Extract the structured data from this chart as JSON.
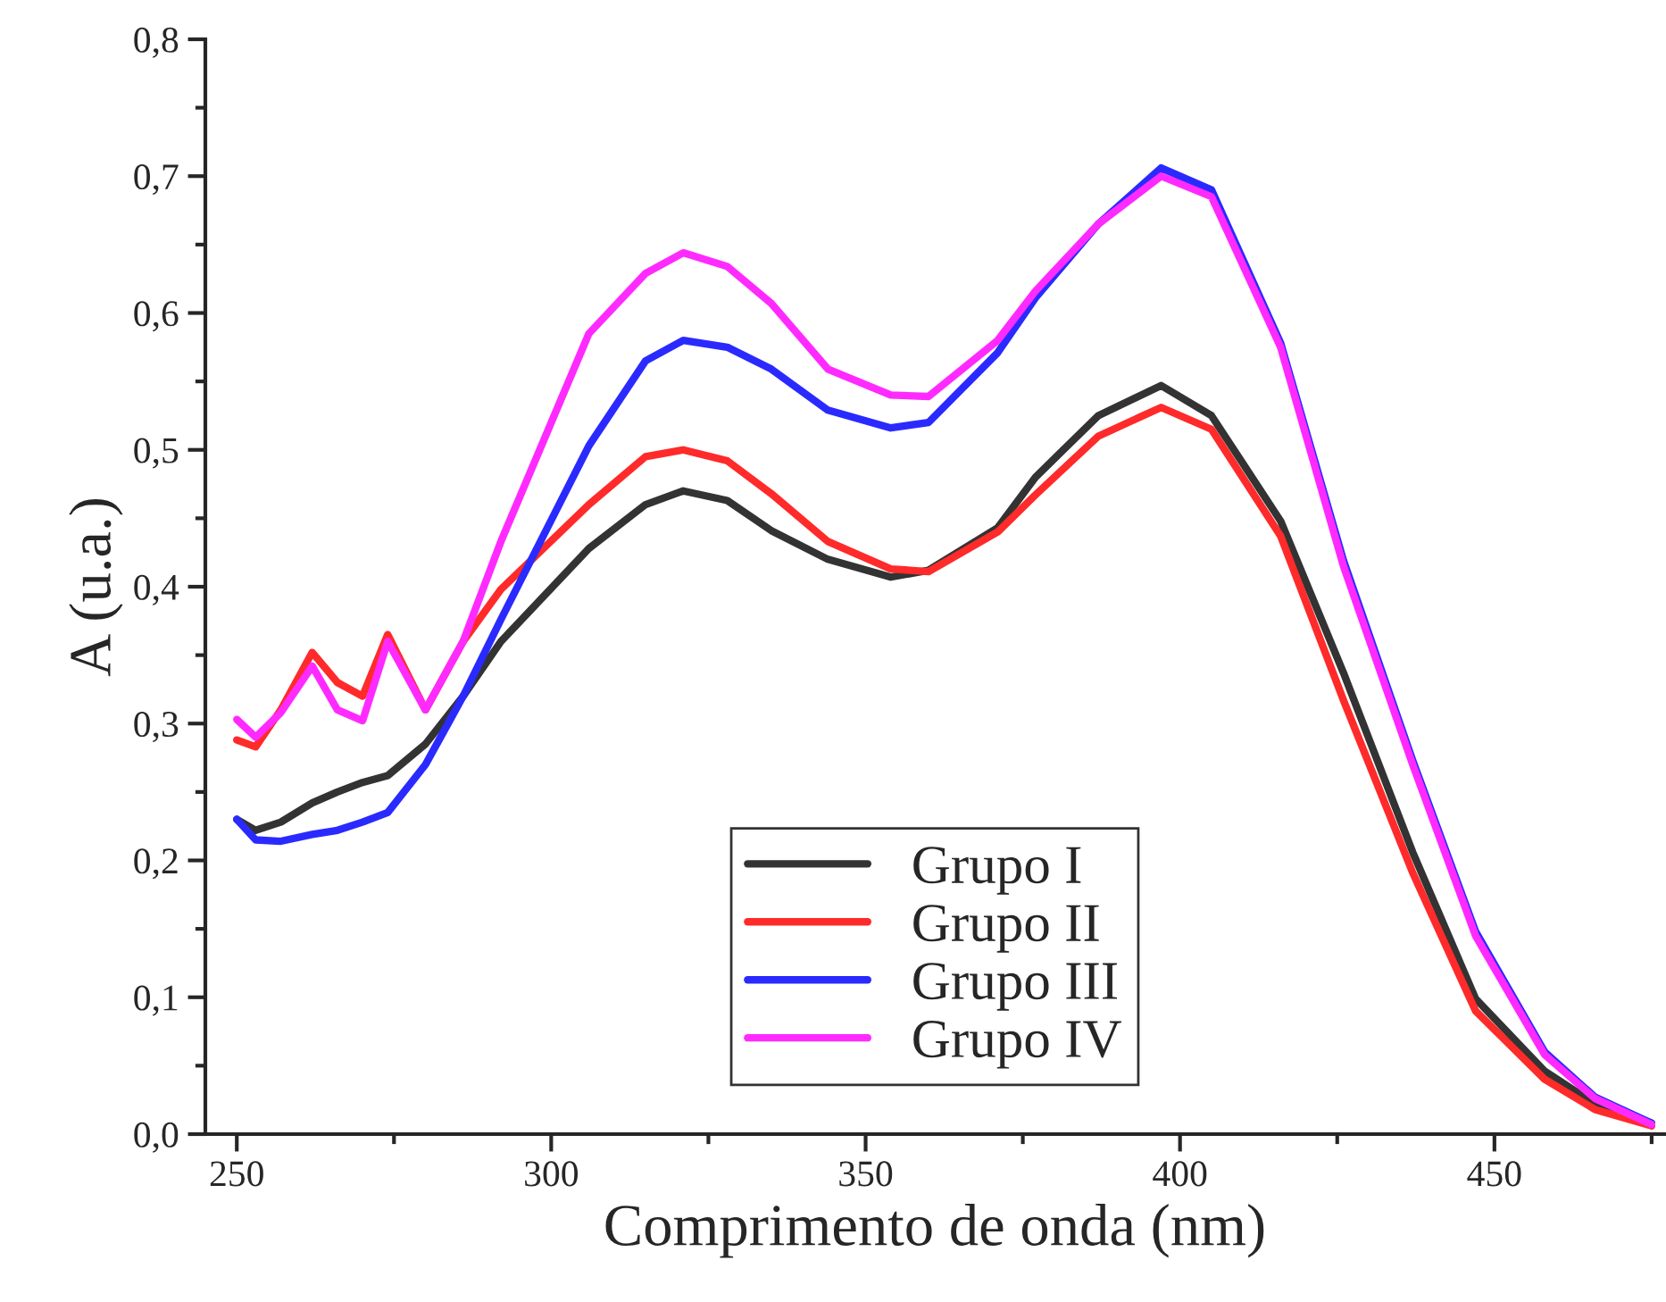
{
  "chart_data": {
    "type": "line",
    "xlabel": "Comprimento de onda (nm)",
    "ylabel": "A (u.a.)",
    "xlim": [
      245,
      477
    ],
    "ylim": [
      0,
      0.8
    ],
    "xticks": [
      250,
      300,
      350,
      400,
      450
    ],
    "yticks": [
      {
        "value": 0,
        "label": "0,0"
      },
      {
        "value": 0.1,
        "label": "0,1"
      },
      {
        "value": 0.2,
        "label": "0,2"
      },
      {
        "value": 0.3,
        "label": "0,3"
      },
      {
        "value": 0.4,
        "label": "0,4"
      },
      {
        "value": 0.5,
        "label": "0,5"
      },
      {
        "value": 0.6,
        "label": "0,6"
      },
      {
        "value": 0.7,
        "label": "0,7"
      },
      {
        "value": 0.8,
        "label": "0,8"
      }
    ],
    "legend": "bottom",
    "grid": false,
    "marker": "none",
    "line_style": "solid",
    "x": [
      250,
      253,
      257,
      262,
      266,
      270,
      274,
      280,
      286,
      292,
      306,
      315,
      321,
      328,
      335,
      344,
      354,
      360,
      371,
      377,
      387,
      397,
      405,
      416,
      426,
      437,
      447,
      458,
      466,
      475
    ],
    "series": [
      {
        "name": "Grupo I",
        "color": "#333333",
        "values": [
          0.23,
          0.222,
          0.228,
          0.242,
          0.25,
          0.257,
          0.262,
          0.285,
          0.32,
          0.36,
          0.428,
          0.46,
          0.47,
          0.463,
          0.441,
          0.42,
          0.407,
          0.412,
          0.443,
          0.48,
          0.525,
          0.547,
          0.525,
          0.448,
          0.337,
          0.206,
          0.099,
          0.046,
          0.022,
          0.008
        ]
      },
      {
        "name": "Grupo II",
        "color": "#ff2a2a",
        "values": [
          0.288,
          0.283,
          0.31,
          0.352,
          0.33,
          0.32,
          0.365,
          0.31,
          0.36,
          0.398,
          0.46,
          0.495,
          0.5,
          0.492,
          0.468,
          0.433,
          0.413,
          0.411,
          0.44,
          0.467,
          0.51,
          0.531,
          0.515,
          0.437,
          0.317,
          0.191,
          0.09,
          0.04,
          0.018,
          0.006
        ]
      },
      {
        "name": "Grupo III",
        "color": "#2a2aff",
        "values": [
          0.23,
          0.215,
          0.214,
          0.219,
          0.222,
          0.228,
          0.235,
          0.27,
          0.32,
          0.376,
          0.503,
          0.565,
          0.58,
          0.575,
          0.559,
          0.529,
          0.516,
          0.52,
          0.571,
          0.611,
          0.665,
          0.706,
          0.69,
          0.578,
          0.419,
          0.273,
          0.148,
          0.06,
          0.027,
          0.008
        ]
      },
      {
        "name": "Grupo IV",
        "color": "#ff2aff",
        "values": [
          0.303,
          0.29,
          0.308,
          0.342,
          0.31,
          0.302,
          0.36,
          0.31,
          0.36,
          0.433,
          0.585,
          0.629,
          0.644,
          0.634,
          0.607,
          0.559,
          0.54,
          0.539,
          0.58,
          0.616,
          0.665,
          0.7,
          0.685,
          0.575,
          0.415,
          0.27,
          0.145,
          0.058,
          0.026,
          0.007
        ]
      }
    ]
  }
}
